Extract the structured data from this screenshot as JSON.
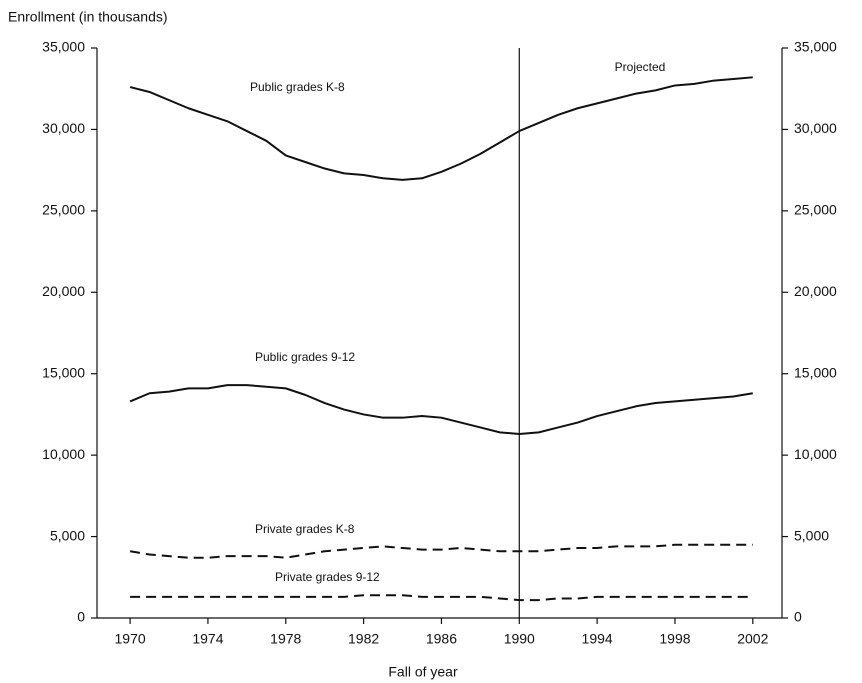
{
  "chart_data": {
    "type": "line",
    "y_axis_label": "Enrollment (in thousands)",
    "x_axis_label": "Fall of year",
    "annotation": "Projected",
    "projection_start": 1990,
    "x": [
      1970,
      1971,
      1972,
      1973,
      1974,
      1975,
      1976,
      1977,
      1978,
      1979,
      1980,
      1981,
      1982,
      1983,
      1984,
      1985,
      1986,
      1987,
      1988,
      1989,
      1990,
      1991,
      1992,
      1993,
      1994,
      1995,
      1996,
      1997,
      1998,
      1999,
      2000,
      2001,
      2002
    ],
    "series": [
      {
        "name": "Public grades K-8",
        "color": "#111111",
        "style": "solid",
        "values": [
          32600,
          32300,
          31800,
          31300,
          30900,
          30500,
          29900,
          29300,
          28400,
          28000,
          27600,
          27300,
          27200,
          27000,
          26900,
          27000,
          27400,
          27900,
          28500,
          29200,
          29900,
          30400,
          30900,
          31300,
          31600,
          31900,
          32200,
          32400,
          32700,
          32800,
          33000,
          33100,
          33200
        ]
      },
      {
        "name": "Public grades 9-12",
        "color": "#111111",
        "style": "solid",
        "values": [
          13300,
          13800,
          13900,
          14100,
          14100,
          14300,
          14300,
          14200,
          14100,
          13700,
          13200,
          12800,
          12500,
          12300,
          12300,
          12400,
          12300,
          12000,
          11700,
          11400,
          11300,
          11400,
          11700,
          12000,
          12400,
          12700,
          13000,
          13200,
          13300,
          13400,
          13500,
          13600,
          13800
        ]
      },
      {
        "name": "Private grades K-8",
        "color": "#111111",
        "style": "dashed",
        "values": [
          4100,
          3900,
          3800,
          3700,
          3700,
          3800,
          3800,
          3800,
          3700,
          3900,
          4100,
          4200,
          4300,
          4400,
          4300,
          4200,
          4200,
          4300,
          4200,
          4100,
          4100,
          4100,
          4200,
          4300,
          4300,
          4400,
          4400,
          4400,
          4500,
          4500,
          4500,
          4500,
          4500
        ]
      },
      {
        "name": "Private grades 9-12",
        "color": "#111111",
        "style": "dashed",
        "values": [
          1300,
          1300,
          1300,
          1300,
          1300,
          1300,
          1300,
          1300,
          1300,
          1300,
          1300,
          1300,
          1400,
          1400,
          1400,
          1300,
          1300,
          1300,
          1300,
          1200,
          1100,
          1100,
          1200,
          1200,
          1300,
          1300,
          1300,
          1300,
          1300,
          1300,
          1300,
          1300,
          1300
        ]
      }
    ],
    "xlim": [
      1968.3,
      2003.5
    ],
    "xticks": [
      1970,
      1974,
      1978,
      1982,
      1986,
      1990,
      1994,
      1998,
      2002
    ],
    "ylim": [
      0,
      35000
    ],
    "yticks": [
      0,
      {
        "value": 5000,
        "label": "5,000"
      },
      {
        "value": 10000,
        "label": "10,000"
      },
      {
        "value": 15000,
        "label": "15,000"
      },
      {
        "value": 20000,
        "label": "20,000"
      },
      {
        "value": 25000,
        "label": "25,000"
      },
      {
        "value": 30000,
        "label": "30,000"
      },
      {
        "value": 35000,
        "label": "35,000"
      }
    ],
    "y2lim": [
      0,
      35000
    ],
    "y2ticks": [
      0,
      {
        "value": 5000,
        "label": "5,000"
      },
      {
        "value": 10000,
        "label": "10,000"
      },
      {
        "value": 15000,
        "label": "15,000"
      },
      {
        "value": 20000,
        "label": "20,000"
      },
      {
        "value": 25000,
        "label": "25,000"
      },
      {
        "value": 30000,
        "label": "30,000"
      },
      {
        "value": 35000,
        "label": "35,000"
      }
    ]
  }
}
